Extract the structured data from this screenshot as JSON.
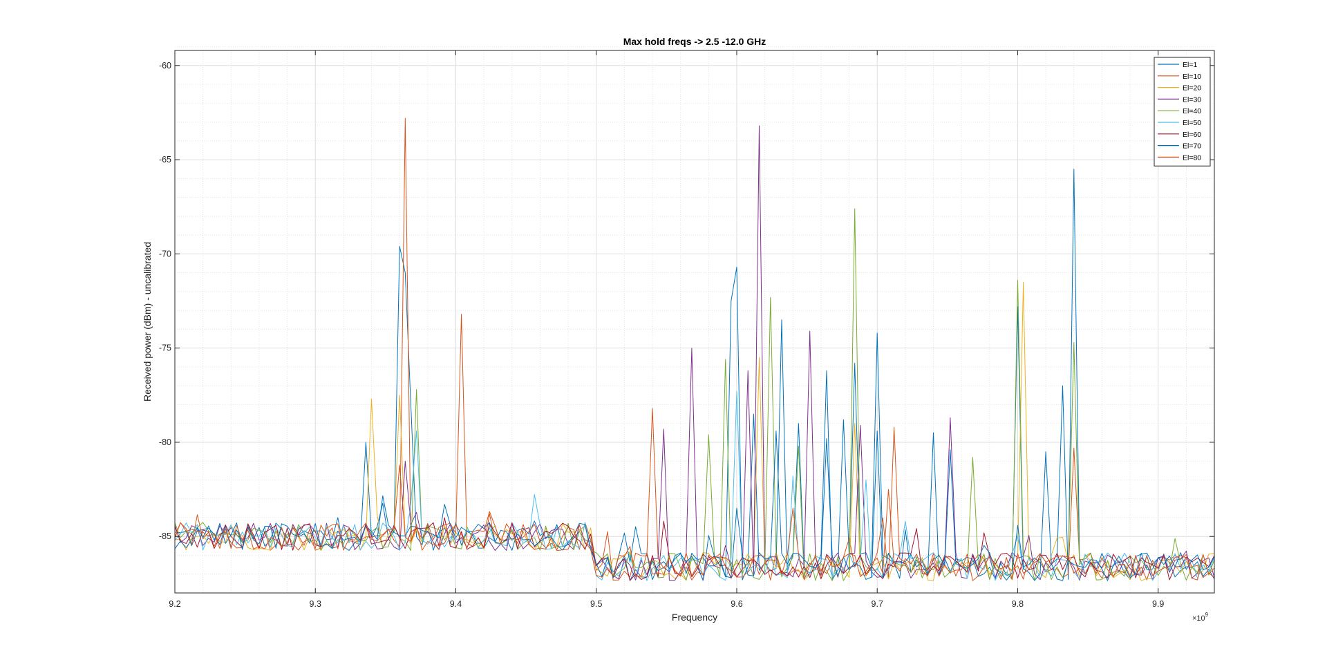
{
  "chart_data": {
    "type": "line",
    "title": "Max hold freqs -> 2.5 -12.0 GHz",
    "xlabel": "Frequency",
    "ylabel": "Received power (dBm) - uncalibrated",
    "x_exponent": {
      "base": "×10",
      "power": "9"
    },
    "xlim": [
      9.2,
      9.94
    ],
    "ylim": [
      -88,
      -59.2
    ],
    "x_ticks": [
      9.2,
      9.3,
      9.4,
      9.5,
      9.6,
      9.7,
      9.8,
      9.9
    ],
    "x_tick_labels": [
      "9.2",
      "9.3",
      "9.4",
      "9.5",
      "9.6",
      "9.7",
      "9.8",
      "9.9"
    ],
    "y_ticks": [
      -60,
      -65,
      -70,
      -75,
      -80,
      -85
    ],
    "y_tick_labels": [
      "-60",
      "-65",
      "-70",
      "-75",
      "-80",
      "-85"
    ],
    "grid": "on",
    "minor_grid": "on",
    "legend_location": "top-right",
    "x_step": 0.004,
    "baseline": {
      "before_9_5": -85.0,
      "after_9_5": -86.6
    },
    "series": [
      {
        "name": "El=1",
        "color": "#0072bd",
        "peaks": [
          [
            9.335,
            -80.0
          ],
          [
            9.36,
            -69.6
          ],
          [
            9.364,
            -71.0
          ],
          [
            9.368,
            -78.0
          ],
          [
            9.596,
            -72.5
          ],
          [
            9.6,
            -70.7
          ],
          [
            9.612,
            -78.5
          ],
          [
            9.632,
            -73.5
          ],
          [
            9.644,
            -79.0
          ],
          [
            9.664,
            -76.2
          ],
          [
            9.676,
            -78.8
          ],
          [
            9.684,
            -75.8
          ],
          [
            9.7,
            -74.2
          ],
          [
            9.74,
            -79.5
          ],
          [
            9.8,
            -72.8
          ],
          [
            9.83,
            -77.0
          ],
          [
            9.84,
            -65.5
          ]
        ]
      },
      {
        "name": "El=10",
        "color": "#d95319",
        "peaks": [
          [
            9.365,
            -62.8
          ],
          [
            9.404,
            -73.2
          ],
          [
            9.54,
            -78.2
          ],
          [
            9.71,
            -79.2
          ],
          [
            9.84,
            -80.3
          ]
        ]
      },
      {
        "name": "El=20",
        "color": "#edb120",
        "peaks": [
          [
            9.34,
            -77.7
          ],
          [
            9.36,
            -77.5
          ],
          [
            9.616,
            -75.5
          ],
          [
            9.684,
            -79.0
          ],
          [
            9.804,
            -71.5
          ]
        ]
      },
      {
        "name": "El=30",
        "color": "#7e2f8e",
        "peaks": [
          [
            9.365,
            -81.0
          ],
          [
            9.548,
            -79.3
          ],
          [
            9.568,
            -75.0
          ],
          [
            9.608,
            -76.2
          ],
          [
            9.615,
            -63.2
          ],
          [
            9.652,
            -74.1
          ],
          [
            9.688,
            -79.1
          ],
          [
            9.752,
            -78.7
          ]
        ]
      },
      {
        "name": "El=40",
        "color": "#77ac30",
        "peaks": [
          [
            9.372,
            -77.2
          ],
          [
            9.58,
            -79.6
          ],
          [
            9.592,
            -75.6
          ],
          [
            9.624,
            -72.3
          ],
          [
            9.644,
            -80.2
          ],
          [
            9.684,
            -67.6
          ],
          [
            9.768,
            -80.8
          ],
          [
            9.8,
            -71.4
          ],
          [
            9.84,
            -74.7
          ]
        ]
      },
      {
        "name": "El=50",
        "color": "#4dbeee",
        "peaks": [
          [
            9.372,
            -79.4
          ],
          [
            9.6,
            -77.3
          ],
          [
            9.64,
            -81.8
          ],
          [
            9.692,
            -82.0
          ]
        ]
      },
      {
        "name": "El=60",
        "color": "#a2142f",
        "peaks": []
      },
      {
        "name": "El=70",
        "color": "#0072bd",
        "peaks": [
          [
            9.6,
            -83.5
          ],
          [
            9.628,
            -79.4
          ],
          [
            9.664,
            -79.8
          ],
          [
            9.7,
            -79.4
          ],
          [
            9.752,
            -80.4
          ],
          [
            9.82,
            -80.5
          ]
        ]
      },
      {
        "name": "El=80",
        "color": "#d95319",
        "peaks": [
          [
            9.36,
            -81.2
          ],
          [
            9.64,
            -83.5
          ],
          [
            9.708,
            -82.5
          ]
        ]
      }
    ]
  }
}
